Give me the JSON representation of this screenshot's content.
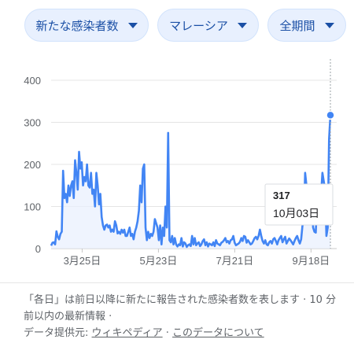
{
  "filters": {
    "metric": "新たな感染者数",
    "region": "マレーシア",
    "period": "全期間"
  },
  "tooltip": {
    "value": "317",
    "date": "10月03日"
  },
  "footer": {
    "note_prefix": "「各日」は前日以降に新たに報告された感染者数を表します",
    "note_sep": " · 10 分前以内の最新情報 ·",
    "source_label": "データ提供元:",
    "source_link": "ウィキペディア",
    "dot": "·",
    "about_link": "このデータについて"
  },
  "colors": {
    "line": "#4285f4",
    "area": "#e8f0fe",
    "text": "#5f6368",
    "chip_text": "#1a4fa5"
  },
  "chart_data": {
    "type": "area",
    "ylim": [
      0,
      400
    ],
    "y_ticks": [
      0,
      100,
      200,
      300,
      400
    ],
    "x_start": "2020-03-01",
    "x_end": "2020-10-03",
    "x_ticks": [
      {
        "label": "3月25日",
        "date": "2020-03-25"
      },
      {
        "label": "5月23日",
        "date": "2020-05-23"
      },
      {
        "label": "7月21日",
        "date": "2020-07-21"
      },
      {
        "label": "9月18日",
        "date": "2020-09-18"
      }
    ],
    "grid": true,
    "values": [
      7,
      14,
      15,
      10,
      41,
      28,
      22,
      35,
      40,
      185,
      120,
      130,
      110,
      150,
      125,
      150,
      160,
      120,
      210,
      180,
      140,
      230,
      190,
      205,
      150,
      170,
      160,
      200,
      150,
      145,
      180,
      130,
      140,
      100,
      180,
      150,
      105,
      130,
      75,
      55,
      45,
      55,
      57,
      50,
      55,
      40,
      45,
      40,
      65,
      55,
      36,
      40,
      35,
      45,
      38,
      45,
      30,
      30,
      40,
      50,
      30,
      35,
      22,
      40,
      50,
      65,
      90,
      150,
      110,
      190,
      200,
      50,
      20,
      40,
      25,
      35,
      30,
      40,
      70,
      60,
      50,
      20,
      55,
      10,
      50,
      30,
      100,
      50,
      275,
      20,
      15,
      30,
      10,
      25,
      10,
      5,
      10,
      8,
      25,
      5,
      15,
      12,
      4,
      8,
      10,
      6,
      30,
      10,
      25,
      8,
      12,
      15,
      6,
      10,
      18,
      22,
      8,
      15,
      5,
      12,
      10,
      8,
      15,
      6,
      20,
      12,
      10,
      8,
      14,
      16,
      20,
      25,
      15,
      18,
      12,
      20,
      22,
      30,
      14,
      8,
      10,
      12,
      16,
      25,
      18,
      30,
      28,
      14,
      20,
      15,
      10,
      12,
      18,
      25,
      28,
      22,
      30,
      45,
      30,
      18,
      12,
      20,
      10,
      8,
      15,
      18,
      12,
      22,
      25,
      18,
      10,
      20,
      25,
      30,
      15,
      22,
      28,
      12,
      18,
      24,
      20,
      15,
      10,
      18,
      25,
      30,
      20,
      12,
      22,
      55,
      60,
      180,
      150,
      60,
      80,
      90,
      110,
      50,
      40,
      38,
      120,
      140,
      90,
      130,
      180,
      160,
      140,
      30,
      50,
      260,
      317
    ]
  }
}
